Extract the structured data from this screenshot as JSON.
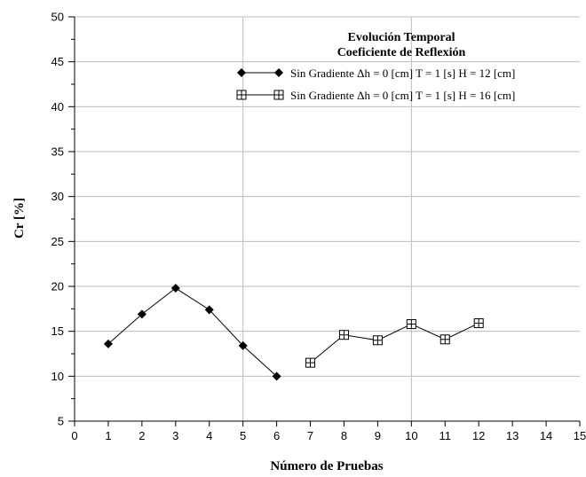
{
  "chart_data": {
    "type": "line",
    "title_lines": [
      "Evolución Temporal",
      "Coeficiente de Reflexión"
    ],
    "xlabel": "Número de Pruebas",
    "ylabel": "Cr [%]",
    "xlim": [
      0,
      15
    ],
    "ylim": [
      5,
      50
    ],
    "x_ticks": [
      0,
      1,
      2,
      3,
      4,
      5,
      6,
      7,
      8,
      9,
      10,
      11,
      12,
      13,
      14,
      15
    ],
    "y_ticks": [
      5,
      10,
      15,
      20,
      25,
      30,
      35,
      40,
      45,
      50
    ],
    "gridlines_x": [
      5,
      10
    ],
    "grid": "partial",
    "legend_position": "top-right",
    "series": [
      {
        "name": "Sin Gradiente Δh = 0 [cm] T = 1 [s] H = 12 [cm]",
        "marker": "diamond",
        "color": "#000000",
        "x": [
          1,
          2,
          3,
          4,
          5,
          6
        ],
        "y": [
          13.6,
          16.9,
          19.8,
          17.4,
          13.4,
          10.0
        ]
      },
      {
        "name": "Sin Gradiente Δh = 0 [cm] T = 1 [s] H = 16 [cm]",
        "marker": "square-plus",
        "color": "#000000",
        "x": [
          7,
          8,
          9,
          10,
          11,
          12
        ],
        "y": [
          11.5,
          14.6,
          14.0,
          15.8,
          14.1,
          15.9
        ]
      }
    ]
  }
}
